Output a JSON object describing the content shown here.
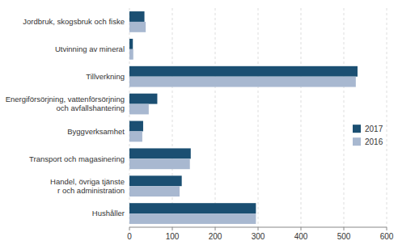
{
  "chart_data": {
    "type": "bar",
    "orientation": "horizontal",
    "categories": [
      "Hushåller",
      "Handel, övriga tjänste\nr och administration",
      "Transport och magasinering",
      "Byggverksamhet",
      "Energiförsörjning, vattenförsörjning\noch avfallshantering",
      "Tillverkning",
      "Utvinning av mineral",
      "Jordbruk, skogsbruk och fiske"
    ],
    "series": [
      {
        "name": "2017",
        "color": "#1b4f72",
        "values": [
          295,
          122,
          143,
          32,
          65,
          532,
          8,
          35
        ]
      },
      {
        "name": "2016",
        "color": "#a8b8d0",
        "values": [
          295,
          117,
          141,
          30,
          45,
          528,
          9,
          38
        ]
      }
    ],
    "xlim": [
      0,
      600
    ],
    "xticks": [
      0,
      100,
      200,
      300,
      400,
      500,
      600
    ],
    "grid": true,
    "legend": "right"
  }
}
